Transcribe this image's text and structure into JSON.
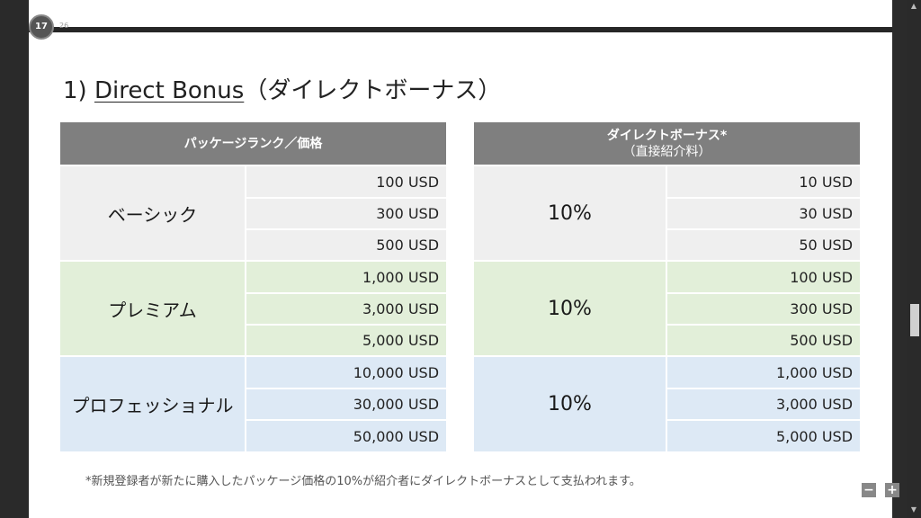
{
  "viewer": {
    "page_current": "17",
    "page_total": "26",
    "zoom_out_label": "−",
    "zoom_in_label": "+"
  },
  "slide": {
    "title_prefix": "1) ",
    "title_main": "Direct Bonus",
    "title_suffix": "（ダイレクトボーナス）",
    "left_table": {
      "header": "パッケージランク／価格",
      "groups": [
        {
          "rank": "ベーシック",
          "prices": [
            "100 USD",
            "300 USD",
            "500 USD"
          ]
        },
        {
          "rank": "プレミアム",
          "prices": [
            "1,000 USD",
            "3,000 USD",
            "5,000 USD"
          ]
        },
        {
          "rank": "プロフェッショナル",
          "prices": [
            "10,000 USD",
            "30,000 USD",
            "50,000 USD"
          ]
        }
      ]
    },
    "right_table": {
      "header_line1": "ダイレクトボーナス*",
      "header_line2": "（直接紹介料）",
      "groups": [
        {
          "rate": "10%",
          "amounts": [
            "10 USD",
            "30 USD",
            "50 USD"
          ]
        },
        {
          "rate": "10%",
          "amounts": [
            "100 USD",
            "300 USD",
            "500 USD"
          ]
        },
        {
          "rate": "10%",
          "amounts": [
            "1,000 USD",
            "3,000 USD",
            "5,000 USD"
          ]
        }
      ]
    },
    "footnote": "*新規登録者が新たに購入したパッケージ価格の10%が紹介者にダイレクトボーナスとして支払われます。"
  }
}
